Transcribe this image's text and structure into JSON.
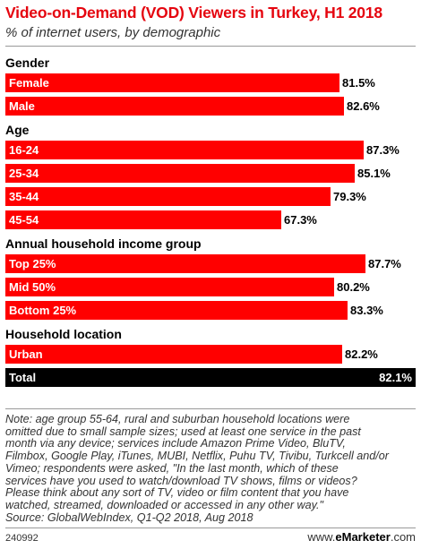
{
  "chart_data": {
    "type": "bar",
    "title": "Video-on-Demand (VOD) Viewers in Turkey, H1 2018",
    "subtitle": "% of internet users, by demographic",
    "xlim": [
      0,
      100
    ],
    "bar_color": "#ff0000",
    "total_color": "#000000",
    "groups": [
      {
        "name": "Gender",
        "items": [
          {
            "label": "Female",
            "value": 81.5,
            "value_label": "81.5%"
          },
          {
            "label": "Male",
            "value": 82.6,
            "value_label": "82.6%"
          }
        ]
      },
      {
        "name": "Age",
        "items": [
          {
            "label": "16-24",
            "value": 87.3,
            "value_label": "87.3%"
          },
          {
            "label": "25-34",
            "value": 85.1,
            "value_label": "85.1%"
          },
          {
            "label": "35-44",
            "value": 79.3,
            "value_label": "79.3%"
          },
          {
            "label": "45-54",
            "value": 67.3,
            "value_label": "67.3%"
          }
        ]
      },
      {
        "name": "Annual household income group",
        "items": [
          {
            "label": "Top 25%",
            "value": 87.7,
            "value_label": "87.7%"
          },
          {
            "label": "Mid 50%",
            "value": 80.2,
            "value_label": "80.2%"
          },
          {
            "label": "Bottom 25%",
            "value": 83.3,
            "value_label": "83.3%"
          }
        ]
      },
      {
        "name": "Household location",
        "items": [
          {
            "label": "Urban",
            "value": 82.2,
            "value_label": "82.2%"
          },
          {
            "label": "Total",
            "value": 82.1,
            "value_label": "82.1%",
            "total": true
          }
        ]
      }
    ]
  },
  "note_lines": [
    "Note: age group 55-64, rural and suburban household locations were",
    "omitted due to small sample sizes; used at least one service in the past",
    "month via any device; services include Amazon Prime Video, BluTV,",
    "Filmbox, Google Play, iTunes, MUBI, Netflix, Puhu TV, Tivibu, Turkcell and/or",
    "Vimeo; respondents were asked, \"In the last month, which of these",
    "services have you used to watch/download TV shows, films or videos?",
    "Please think about any sort of TV, video or film content that you have",
    "watched, streamed, downloaded or accessed in any other way.\"",
    "Source: GlobalWebIndex, Q1-Q2 2018, Aug 2018"
  ],
  "footer": {
    "id": "240992",
    "brand_prefix": "www.",
    "brand_name": "eMarketer",
    "brand_suffix": ".com"
  }
}
